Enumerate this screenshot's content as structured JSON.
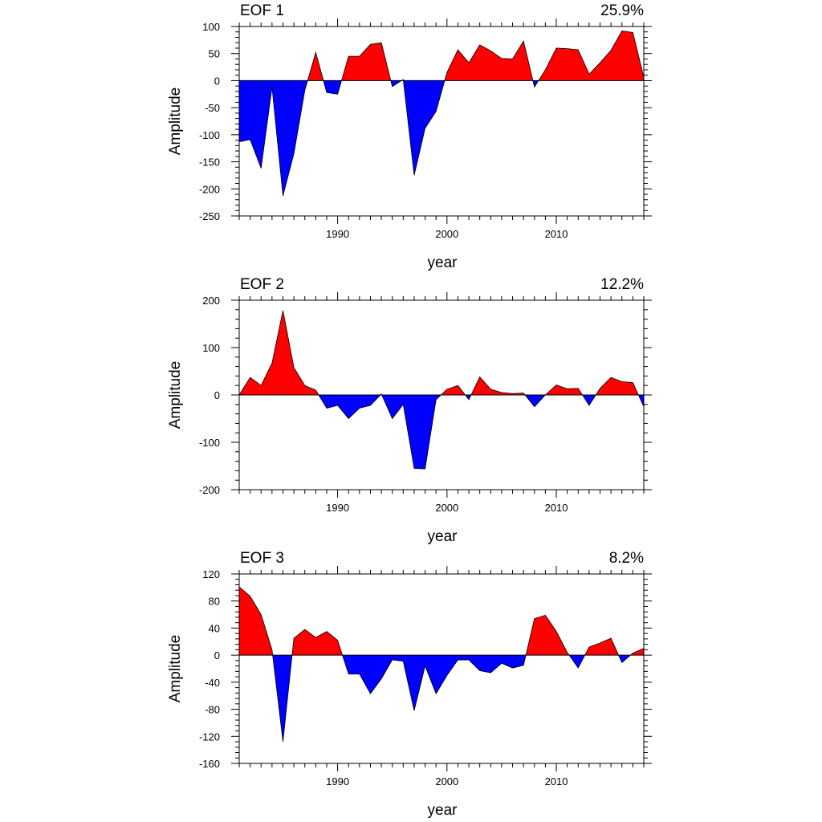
{
  "chart_data": [
    {
      "type": "area",
      "title": "EOF 1",
      "percent": "25.9%",
      "xlabel": "year",
      "ylabel": "Amplitude",
      "xlim": [
        1981,
        2018
      ],
      "ylim": [
        -250,
        100
      ],
      "xticks": [
        1990,
        2000,
        2010
      ],
      "yticks": [
        100,
        50,
        0,
        -50,
        -100,
        -150,
        -200,
        -250
      ],
      "positive_color": "#ff0000",
      "negative_color": "#0000ff",
      "x": [
        1981,
        1982,
        1983,
        1984,
        1985,
        1986,
        1987,
        1988,
        1989,
        1990,
        1991,
        1992,
        1993,
        1994,
        1995,
        1996,
        1997,
        1998,
        1999,
        2000,
        2001,
        2002,
        2003,
        2004,
        2005,
        2006,
        2007,
        2008,
        2009,
        2010,
        2011,
        2012,
        2013,
        2014,
        2015,
        2016,
        2017,
        2018
      ],
      "values": [
        -113,
        -109,
        -162,
        -12,
        -213,
        -135,
        -18,
        52,
        -22,
        -25,
        45,
        45,
        67,
        70,
        -11,
        2,
        -175,
        -88,
        -57,
        15,
        57,
        33,
        66,
        55,
        41,
        40,
        73,
        -12,
        20,
        60,
        59,
        57,
        12,
        33,
        56,
        92,
        89,
        6
      ]
    },
    {
      "type": "area",
      "title": "EOF 2",
      "percent": "12.2%",
      "xlabel": "year",
      "ylabel": "Amplitude",
      "xlim": [
        1981,
        2018
      ],
      "ylim": [
        -200,
        200
      ],
      "xticks": [
        1990,
        2000,
        2010
      ],
      "yticks": [
        200,
        100,
        0,
        -100,
        -200
      ],
      "positive_color": "#ff0000",
      "negative_color": "#0000ff",
      "x": [
        1981,
        1982,
        1983,
        1984,
        1985,
        1986,
        1987,
        1988,
        1989,
        1990,
        1991,
        1992,
        1993,
        1994,
        1995,
        1996,
        1997,
        1998,
        1999,
        2000,
        2001,
        2002,
        2003,
        2004,
        2005,
        2006,
        2007,
        2008,
        2009,
        2010,
        2011,
        2012,
        2013,
        2014,
        2015,
        2016,
        2017,
        2018
      ],
      "values": [
        0,
        37,
        20,
        67,
        178,
        58,
        20,
        10,
        -28,
        -22,
        -50,
        -28,
        -22,
        2,
        -50,
        -20,
        -155,
        -156,
        -10,
        12,
        20,
        -10,
        38,
        12,
        5,
        3,
        4,
        -25,
        0,
        21,
        13,
        14,
        -22,
        14,
        37,
        28,
        26,
        -25
      ]
    },
    {
      "type": "area",
      "title": "EOF 3",
      "percent": "8.2%",
      "xlabel": "year",
      "ylabel": "Amplitude",
      "xlim": [
        1981,
        2018
      ],
      "ylim": [
        -160,
        120
      ],
      "xticks": [
        1990,
        2000,
        2010
      ],
      "yticks": [
        120,
        80,
        40,
        0,
        -40,
        -80,
        -120,
        -160
      ],
      "positive_color": "#ff0000",
      "negative_color": "#0000ff",
      "x": [
        1981,
        1982,
        1983,
        1984,
        1985,
        1986,
        1987,
        1988,
        1989,
        1990,
        1991,
        1992,
        1993,
        1994,
        1995,
        1996,
        1997,
        1998,
        1999,
        2000,
        2001,
        2002,
        2003,
        2004,
        2005,
        2006,
        2007,
        2008,
        2009,
        2010,
        2011,
        2012,
        2013,
        2014,
        2015,
        2016,
        2017,
        2018
      ],
      "values": [
        101,
        87,
        60,
        8,
        -128,
        25,
        38,
        26,
        35,
        22,
        -28,
        -28,
        -57,
        -35,
        -7,
        -9,
        -82,
        -16,
        -57,
        -30,
        -7,
        -7,
        -23,
        -26,
        -12,
        -19,
        -15,
        54,
        59,
        35,
        4,
        -19,
        12,
        18,
        25,
        -11,
        3,
        10
      ]
    }
  ]
}
